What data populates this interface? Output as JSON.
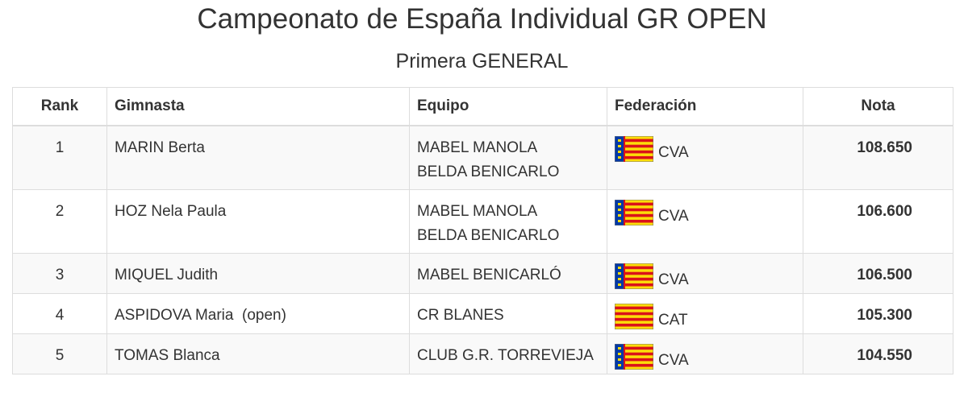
{
  "header": {
    "title": "Campeonato de España Individual GR OPEN",
    "subtitle": "Primera GENERAL"
  },
  "table": {
    "columns": [
      "Rank",
      "Gimnasta",
      "Equipo",
      "Federación",
      "Nota"
    ],
    "rows": [
      [
        "1",
        "MARIN Berta",
        "MABEL MANOLA\nBELDA BENICARLO",
        "CVA",
        "108.650"
      ],
      [
        "2",
        "HOZ Nela Paula",
        "MABEL MANOLA\nBELDA BENICARLO",
        "CVA",
        "106.600"
      ],
      [
        "3",
        "MIQUEL Judith",
        "MABEL BENICARLÓ",
        "CVA",
        "106.500"
      ],
      [
        "4",
        "ASPIDOVA Maria  (open)",
        "CR BLANES",
        "CAT",
        "105.300"
      ],
      [
        "5",
        "TOMAS Blanca",
        "CLUB G.R. TORREVIEJA",
        "CVA",
        "104.550"
      ]
    ]
  }
}
